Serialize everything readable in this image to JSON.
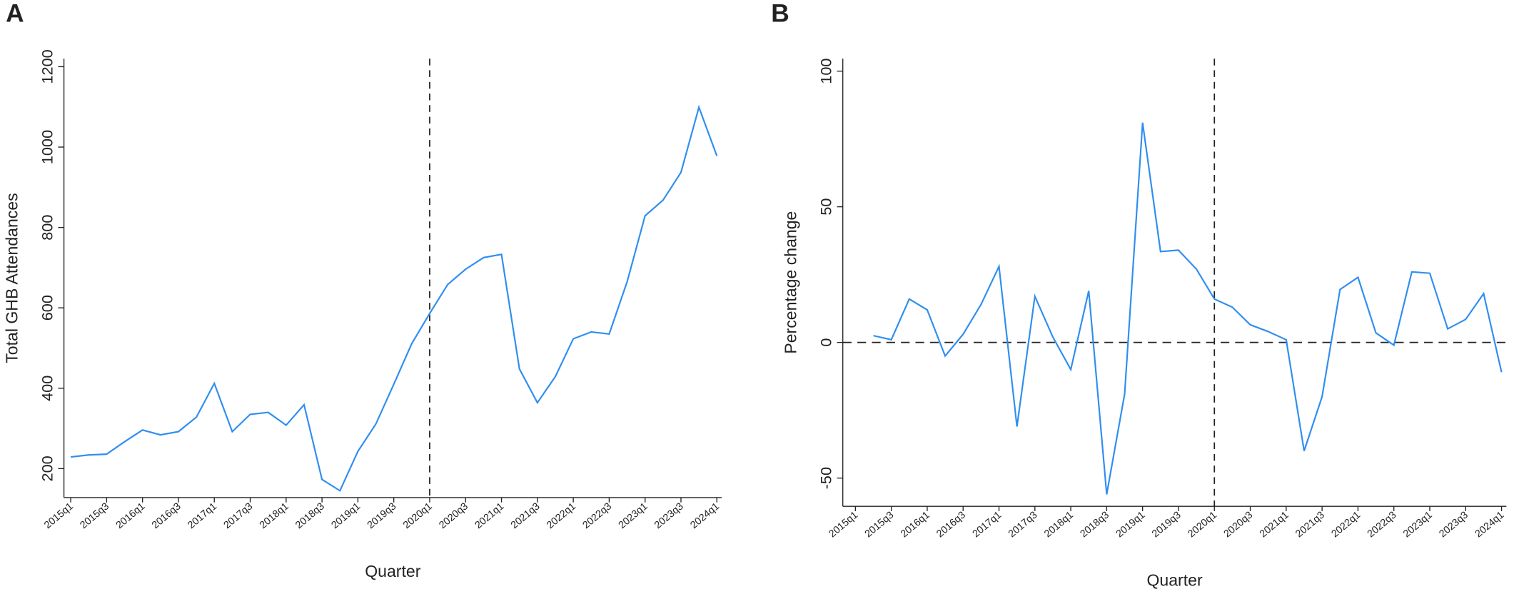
{
  "chart_data": [
    {
      "type": "line",
      "panel": "A",
      "ylabel": "Total GHB Attendances",
      "xlabel": "Quarter",
      "categories": [
        "2015q1",
        null,
        "2015q3",
        null,
        "2016q1",
        null,
        "2016q3",
        null,
        "2017q1",
        null,
        "2017q3",
        null,
        "2018q1",
        null,
        "2018q3",
        null,
        "2019q1",
        null,
        "2019q3",
        null,
        "2020q1",
        null,
        "2020q3",
        null,
        "2021q1",
        null,
        "2021q3",
        null,
        "2022q1",
        null,
        "2022q3",
        null,
        "2023q1",
        null,
        "2023q3",
        null,
        "2024q1"
      ],
      "series": [
        {
          "color": "#2f8ef0",
          "values": [
            229,
            234,
            236,
            267,
            296,
            284,
            292,
            328,
            412,
            292,
            335,
            340,
            308,
            359,
            173,
            145,
            243,
            311,
            410,
            511,
            586,
            658,
            696,
            725,
            733,
            448,
            364,
            429,
            523,
            540,
            535,
            665,
            829,
            868,
            937,
            1099,
            978
          ]
        }
      ],
      "ylim": [
        128,
        1220
      ],
      "yticks": [
        200,
        400,
        600,
        800,
        1000,
        1200
      ],
      "vline": "2020q1"
    },
    {
      "type": "line",
      "panel": "B",
      "ylabel": "Percentage change",
      "xlabel": "Quarter",
      "categories": [
        "2015q1",
        null,
        "2015q3",
        null,
        "2016q1",
        null,
        "2016q3",
        null,
        "2017q1",
        null,
        "2017q3",
        null,
        "2018q1",
        null,
        "2018q3",
        null,
        "2019q1",
        null,
        "2019q3",
        null,
        "2020q1",
        null,
        "2020q3",
        null,
        "2021q1",
        null,
        "2021q3",
        null,
        "2022q1",
        null,
        "2022q3",
        null,
        "2023q1",
        null,
        "2023q3",
        null,
        "2024q1"
      ],
      "series": [
        {
          "color": "#2f8ef0",
          "values": [
            null,
            2.5,
            1,
            16,
            12,
            -5,
            3,
            14,
            28,
            -31,
            17,
            2,
            -10,
            19,
            -56,
            -19,
            81,
            33.5,
            34,
            27,
            16,
            13,
            6.5,
            4,
            1,
            -40,
            -20,
            19.5,
            24,
            3.5,
            -1,
            26,
            25.5,
            5,
            8.5,
            18,
            -11
          ]
        }
      ],
      "ylim": [
        -60.4,
        104.6
      ],
      "yticks": [
        -50,
        0,
        50,
        100
      ],
      "vline": "2020q1",
      "hline": 0
    }
  ]
}
